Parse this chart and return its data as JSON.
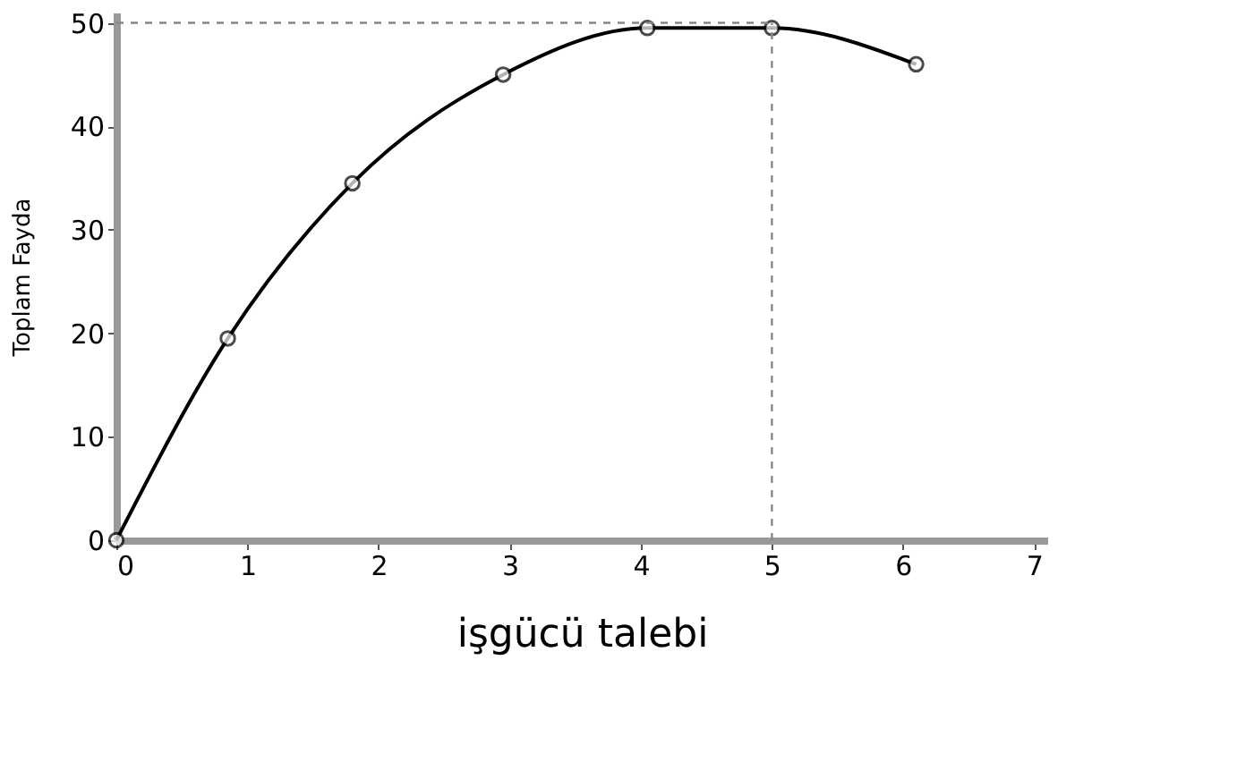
{
  "chart_data": {
    "type": "line",
    "xlabel": "işgücü talebi",
    "ylabel": "Toplam Fayda",
    "x": [
      0,
      0.85,
      1.8,
      2.95,
      4.05,
      5.0,
      6.1
    ],
    "series": [
      {
        "color": "#000000",
        "values": [
          0,
          19.5,
          34.5,
          45,
          49.5,
          49.5,
          46
        ]
      }
    ],
    "xlim": [
      0,
      7.1
    ],
    "xticks": [
      0,
      1,
      2,
      3,
      4,
      5,
      6,
      7
    ],
    "ylim": [
      0,
      51
    ],
    "yticks": [
      0,
      10,
      20,
      30,
      40,
      50
    ],
    "ref_lines": [
      {
        "axis": "x",
        "value": 5,
        "color": "#888888",
        "line_style": "dashed"
      },
      {
        "axis": "y",
        "value": 50,
        "color": "#888888",
        "line_style": "dashed"
      }
    ],
    "grid": false,
    "marker": "circle",
    "line_style": "solid"
  }
}
